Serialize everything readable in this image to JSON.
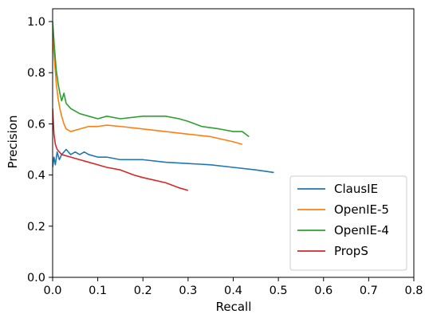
{
  "chart_data": {
    "type": "line",
    "title": "",
    "xlabel": "Recall",
    "ylabel": "Precision",
    "xlim": [
      0.0,
      0.8
    ],
    "ylim": [
      0.0,
      1.05
    ],
    "xticks": [
      "0.0",
      "0.1",
      "0.2",
      "0.3",
      "0.4",
      "0.5",
      "0.6",
      "0.7",
      "0.8"
    ],
    "yticks": [
      "0.0",
      "0.2",
      "0.4",
      "0.6",
      "0.8",
      "1.0"
    ],
    "grid": false,
    "legend_position": "lower-right",
    "series": [
      {
        "name": "ClausIE",
        "color": "#1f77b4",
        "points": [
          [
            0.0,
            0.43
          ],
          [
            0.003,
            0.47
          ],
          [
            0.006,
            0.44
          ],
          [
            0.01,
            0.49
          ],
          [
            0.015,
            0.46
          ],
          [
            0.02,
            0.48
          ],
          [
            0.03,
            0.5
          ],
          [
            0.04,
            0.48
          ],
          [
            0.05,
            0.49
          ],
          [
            0.06,
            0.48
          ],
          [
            0.07,
            0.49
          ],
          [
            0.08,
            0.48
          ],
          [
            0.1,
            0.47
          ],
          [
            0.12,
            0.47
          ],
          [
            0.15,
            0.46
          ],
          [
            0.2,
            0.46
          ],
          [
            0.25,
            0.45
          ],
          [
            0.3,
            0.445
          ],
          [
            0.35,
            0.44
          ],
          [
            0.4,
            0.43
          ],
          [
            0.45,
            0.42
          ],
          [
            0.49,
            0.41
          ]
        ]
      },
      {
        "name": "OpenIE-5",
        "color": "#ff7f0e",
        "points": [
          [
            0.0,
            0.94
          ],
          [
            0.004,
            0.85
          ],
          [
            0.008,
            0.76
          ],
          [
            0.012,
            0.7
          ],
          [
            0.016,
            0.66
          ],
          [
            0.02,
            0.63
          ],
          [
            0.025,
            0.6
          ],
          [
            0.03,
            0.58
          ],
          [
            0.04,
            0.57
          ],
          [
            0.06,
            0.58
          ],
          [
            0.08,
            0.59
          ],
          [
            0.1,
            0.59
          ],
          [
            0.12,
            0.595
          ],
          [
            0.15,
            0.59
          ],
          [
            0.2,
            0.58
          ],
          [
            0.25,
            0.57
          ],
          [
            0.3,
            0.56
          ],
          [
            0.35,
            0.55
          ],
          [
            0.4,
            0.53
          ],
          [
            0.42,
            0.52
          ]
        ]
      },
      {
        "name": "OpenIE-4",
        "color": "#2ca02c",
        "points": [
          [
            0.0,
            1.0
          ],
          [
            0.004,
            0.9
          ],
          [
            0.008,
            0.81
          ],
          [
            0.012,
            0.76
          ],
          [
            0.016,
            0.72
          ],
          [
            0.02,
            0.69
          ],
          [
            0.025,
            0.72
          ],
          [
            0.03,
            0.68
          ],
          [
            0.04,
            0.66
          ],
          [
            0.06,
            0.64
          ],
          [
            0.08,
            0.63
          ],
          [
            0.1,
            0.62
          ],
          [
            0.12,
            0.63
          ],
          [
            0.15,
            0.62
          ],
          [
            0.2,
            0.63
          ],
          [
            0.25,
            0.63
          ],
          [
            0.28,
            0.62
          ],
          [
            0.3,
            0.61
          ],
          [
            0.33,
            0.59
          ],
          [
            0.37,
            0.58
          ],
          [
            0.4,
            0.57
          ],
          [
            0.42,
            0.57
          ],
          [
            0.435,
            0.55
          ]
        ]
      },
      {
        "name": "PropS",
        "color": "#d62728",
        "points": [
          [
            0.0,
            0.66
          ],
          [
            0.003,
            0.56
          ],
          [
            0.006,
            0.52
          ],
          [
            0.01,
            0.5
          ],
          [
            0.015,
            0.49
          ],
          [
            0.02,
            0.48
          ],
          [
            0.04,
            0.47
          ],
          [
            0.06,
            0.46
          ],
          [
            0.08,
            0.45
          ],
          [
            0.1,
            0.44
          ],
          [
            0.12,
            0.43
          ],
          [
            0.15,
            0.42
          ],
          [
            0.18,
            0.4
          ],
          [
            0.2,
            0.39
          ],
          [
            0.25,
            0.37
          ],
          [
            0.28,
            0.35
          ],
          [
            0.3,
            0.34
          ]
        ]
      }
    ]
  }
}
